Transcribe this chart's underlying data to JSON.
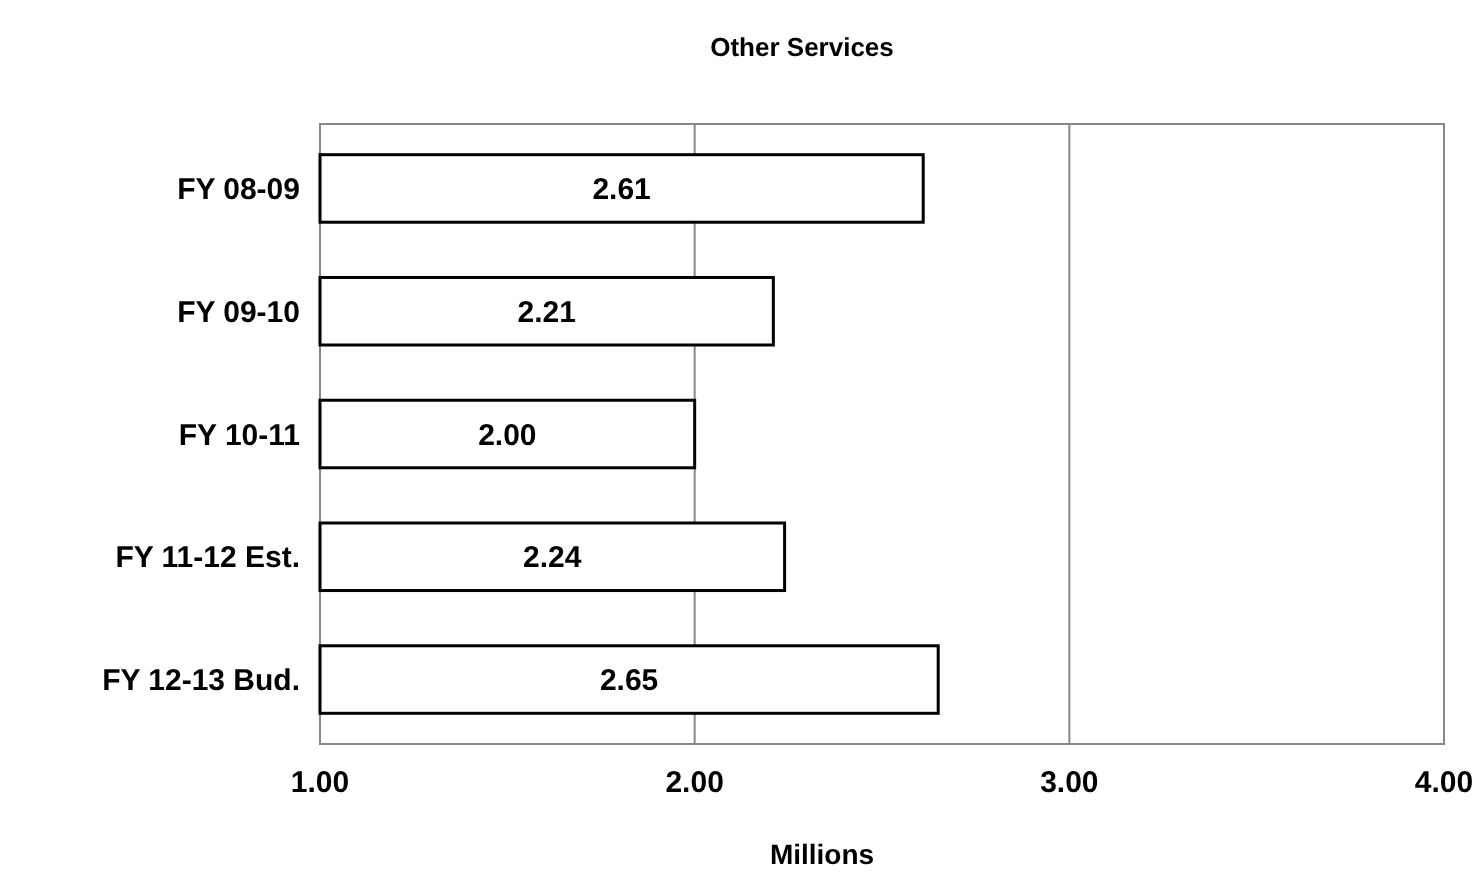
{
  "chart_data": {
    "type": "bar",
    "orientation": "horizontal",
    "title": "Other Services",
    "xlabel": "Millions",
    "categories": [
      "FY 08-09",
      "FY 09-10",
      "FY 10-11",
      "FY 11-12 Est.",
      "FY 12-13 Bud."
    ],
    "values": [
      2.61,
      2.21,
      2.0,
      2.24,
      2.65
    ],
    "value_labels": [
      "2.61",
      "2.21",
      "2.00",
      "2.24",
      "2.65"
    ],
    "color": "#ffffff",
    "xlim": [
      1,
      4
    ],
    "xticks": [
      {
        "value": 1,
        "label": "1.00"
      },
      {
        "value": 2,
        "label": "2.00"
      },
      {
        "value": 3,
        "label": "3.00"
      },
      {
        "value": 4,
        "label": "4.00"
      }
    ],
    "grid": "x"
  }
}
